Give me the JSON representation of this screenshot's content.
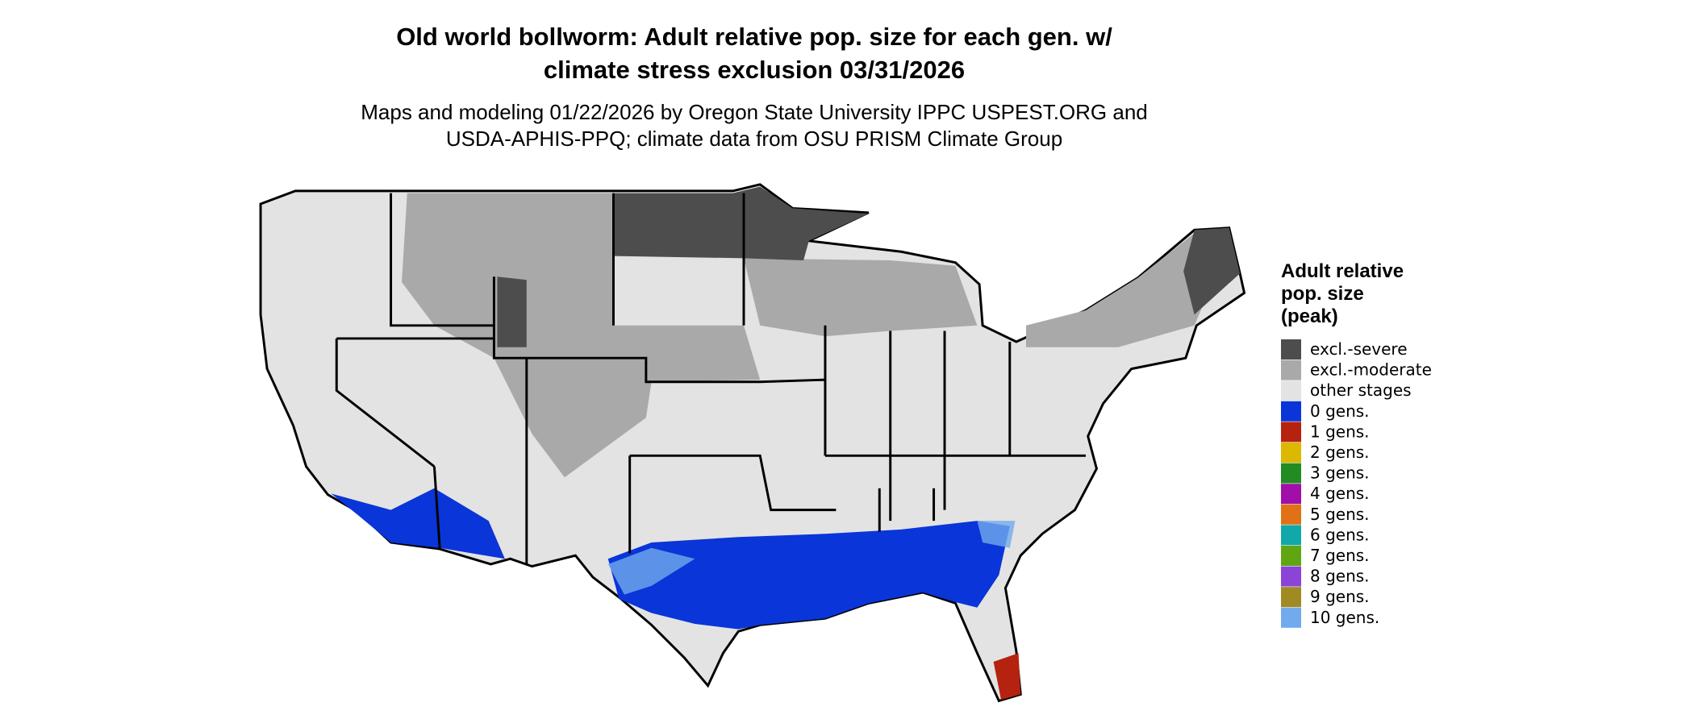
{
  "header": {
    "title": [
      "Old world bollworm: Adult relative pop. size for each gen. w/",
      "climate stress exclusion 03/31/2026"
    ],
    "subtitle": [
      "Maps and modeling 01/22/2026 by Oregon State University IPPC USPEST.ORG and",
      "USDA-APHIS-PPQ; climate data from OSU PRISM Climate Group"
    ]
  },
  "legend": {
    "title": [
      "Adult relative",
      "pop. size",
      "(peak)"
    ],
    "items": [
      {
        "label": "excl.-severe",
        "color": "#4d4d4d"
      },
      {
        "label": "excl.-moderate",
        "color": "#a9a9a9"
      },
      {
        "label": "other stages",
        "color": "#e3e3e3"
      },
      {
        "label": "0 gens.",
        "color": "#0a35d8"
      },
      {
        "label": "1 gens.",
        "color": "#b52210"
      },
      {
        "label": "2 gens.",
        "color": "#dcb800"
      },
      {
        "label": "3 gens.",
        "color": "#228b22"
      },
      {
        "label": "4 gens.",
        "color": "#a00fa8"
      },
      {
        "label": "5 gens.",
        "color": "#e07215"
      },
      {
        "label": "6 gens.",
        "color": "#10a8aa"
      },
      {
        "label": "7 gens.",
        "color": "#5fa612"
      },
      {
        "label": "8 gens.",
        "color": "#8a44d8"
      },
      {
        "label": "9 gens.",
        "color": "#a08a22"
      },
      {
        "label": "10 gens.",
        "color": "#72aaee"
      }
    ]
  }
}
